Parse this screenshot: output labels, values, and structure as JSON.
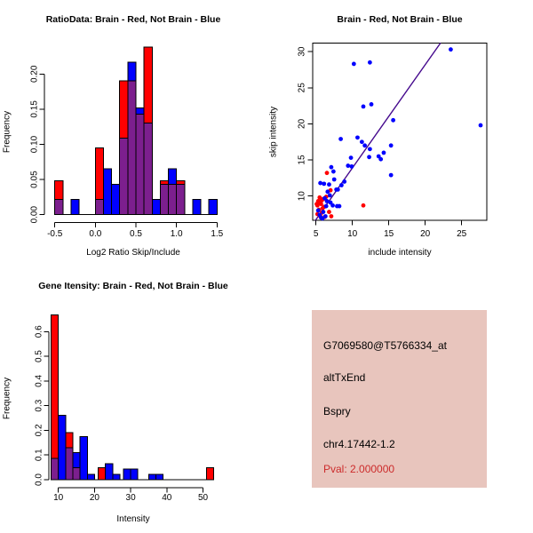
{
  "colors": {
    "red": "#FF0000",
    "blue": "#0000FF",
    "overlap_purple": "#7C1F8E",
    "fit_line": "#45098D",
    "axis": "#000000",
    "info_bg": "#E8C5BD",
    "pval_red": "#CC2B2B"
  },
  "chart_data": [
    {
      "id": "ratio_histogram",
      "type": "bar",
      "subtype": "overlaid-histogram",
      "title": "RatioData: Brain - Red, Not Brain - Blue",
      "xlabel": "Log2 Ratio Skip/Include",
      "ylabel": "Frequency",
      "xlim": [
        -0.5,
        1.5
      ],
      "ylim": [
        0,
        0.2
      ],
      "grid": false,
      "x_tick_values": [
        -0.5,
        0.0,
        0.5,
        1.0,
        1.5
      ],
      "x_tick_labels": [
        "-0.5",
        "0.0",
        "0.5",
        "1.0",
        "1.5"
      ],
      "y_tick_values": [
        0.0,
        0.05,
        0.1,
        0.15,
        0.2
      ],
      "y_tick_labels": [
        "0.00",
        "0.05",
        "0.10",
        "0.15",
        "0.20"
      ],
      "bin_width": 0.1,
      "baseline_extent": [
        -0.5,
        1.5
      ],
      "series": [
        {
          "name": "Brain",
          "color_key": "red",
          "bins": [
            [
              -0.5,
              0.048
            ],
            [
              0.0,
              0.095
            ],
            [
              0.3,
              0.19
            ],
            [
              0.4,
              0.19
            ],
            [
              0.5,
              0.143
            ],
            [
              0.6,
              0.238
            ],
            [
              0.8,
              0.048
            ],
            [
              0.9,
              0.043
            ],
            [
              1.0,
              0.048
            ]
          ]
        },
        {
          "name": "Not Brain",
          "color_key": "blue",
          "bins": [
            [
              -0.5,
              0.022
            ],
            [
              -0.3,
              0.022
            ],
            [
              0.0,
              0.022
            ],
            [
              0.1,
              0.065
            ],
            [
              0.2,
              0.043
            ],
            [
              0.3,
              0.109
            ],
            [
              0.4,
              0.217
            ],
            [
              0.5,
              0.152
            ],
            [
              0.6,
              0.13
            ],
            [
              0.7,
              0.022
            ],
            [
              0.8,
              0.043
            ],
            [
              0.9,
              0.065
            ],
            [
              1.0,
              0.043
            ],
            [
              1.2,
              0.022
            ],
            [
              1.4,
              0.022
            ]
          ]
        }
      ]
    },
    {
      "id": "intensity_scatter",
      "type": "scatter",
      "title": "Brain - Red, Not Brain - Blue",
      "xlabel": "include intensity",
      "ylabel": "skip intensity",
      "xlim": [
        4.6,
        28.5
      ],
      "ylim": [
        6.6,
        31.2
      ],
      "grid": false,
      "x_tick_values": [
        5,
        10,
        15,
        20,
        25
      ],
      "x_tick_labels": [
        "5",
        "10",
        "15",
        "20",
        "25"
      ],
      "y_tick_values": [
        10,
        15,
        20,
        25,
        30
      ],
      "y_tick_labels": [
        "10",
        "15",
        "20",
        "25",
        "30"
      ],
      "fit_line": {
        "x1": 4.9,
        "y1": 6.6,
        "x2": 22.1,
        "y2": 31.2
      },
      "series": [
        {
          "name": "Brain",
          "color_key": "red",
          "points": [
            [
              6.5,
              13.2
            ],
            [
              11.5,
              8.7
            ],
            [
              7.0,
              10.8
            ],
            [
              5.5,
              9.8
            ],
            [
              5.8,
              9.4
            ],
            [
              5.3,
              9.3
            ],
            [
              5.6,
              9.0
            ],
            [
              5.2,
              8.7
            ],
            [
              5.9,
              8.3
            ],
            [
              6.1,
              8.5
            ],
            [
              5.2,
              7.5
            ],
            [
              6.2,
              7.1
            ],
            [
              6.8,
              7.8
            ],
            [
              5.7,
              8.9
            ],
            [
              6.0,
              9.6
            ],
            [
              5.4,
              8.1
            ],
            [
              7.1,
              7.2
            ],
            [
              5.8,
              7.7
            ],
            [
              6.4,
              9.9
            ],
            [
              5.6,
              7.2
            ],
            [
              5.1,
              8.9
            ]
          ]
        },
        {
          "name": "Not Brain",
          "color_key": "blue",
          "points": [
            [
              23.5,
              30.3
            ],
            [
              10.2,
              28.3
            ],
            [
              12.4,
              28.5
            ],
            [
              11.5,
              22.4
            ],
            [
              12.6,
              22.7
            ],
            [
              15.6,
              20.5
            ],
            [
              27.6,
              19.8
            ],
            [
              8.4,
              17.9
            ],
            [
              10.7,
              18.1
            ],
            [
              11.3,
              17.5
            ],
            [
              11.7,
              17.0
            ],
            [
              12.4,
              16.5
            ],
            [
              15.3,
              17.0
            ],
            [
              14.3,
              16.0
            ],
            [
              13.6,
              15.5
            ],
            [
              13.9,
              15.1
            ],
            [
              12.3,
              15.4
            ],
            [
              9.8,
              15.3
            ],
            [
              15.3,
              12.9
            ],
            [
              9.4,
              14.2
            ],
            [
              9.9,
              14.1
            ],
            [
              7.1,
              14.0
            ],
            [
              7.4,
              13.4
            ],
            [
              8.9,
              12.0
            ],
            [
              8.5,
              11.5
            ],
            [
              6.1,
              11.7
            ],
            [
              5.6,
              11.8
            ],
            [
              8.0,
              10.9
            ],
            [
              7.8,
              10.9
            ],
            [
              6.6,
              10.6
            ],
            [
              6.9,
              10.1
            ],
            [
              6.2,
              9.7
            ],
            [
              6.5,
              9.3
            ],
            [
              7.0,
              9.1
            ],
            [
              6.4,
              8.6
            ],
            [
              7.3,
              8.7
            ],
            [
              7.9,
              8.6
            ],
            [
              8.2,
              8.6
            ],
            [
              6.0,
              7.8
            ],
            [
              5.5,
              7.4
            ],
            [
              5.3,
              8.0
            ],
            [
              7.5,
              12.3
            ],
            [
              6.8,
              11.6
            ],
            [
              5.9,
              6.9
            ],
            [
              6.3,
              7.2
            ],
            [
              5.7,
              7.0
            ]
          ]
        }
      ]
    },
    {
      "id": "gene_intensity_histogram",
      "type": "bar",
      "subtype": "overlaid-histogram",
      "title": "Gene Itensity: Brain - Red, Not Brain - Blue",
      "xlabel": "Intensity",
      "ylabel": "Frequency",
      "xlim": [
        8,
        53
      ],
      "ylim": [
        0,
        0.6
      ],
      "grid": false,
      "x_tick_values": [
        10,
        20,
        30,
        40,
        50
      ],
      "x_tick_labels": [
        "10",
        "20",
        "30",
        "40",
        "50"
      ],
      "y_tick_values": [
        0.0,
        0.1,
        0.2,
        0.3,
        0.4,
        0.5,
        0.6
      ],
      "y_tick_labels": [
        "0.0",
        "0.1",
        "0.2",
        "0.3",
        "0.4",
        "0.5",
        "0.6"
      ],
      "bin_width": 2,
      "baseline_extent": [
        8,
        53
      ],
      "series": [
        {
          "name": "Brain",
          "color_key": "red",
          "bins": [
            [
              8,
              0.667
            ],
            [
              12,
              0.19
            ],
            [
              14,
              0.048
            ],
            [
              21,
              0.048
            ],
            [
              51,
              0.048
            ]
          ]
        },
        {
          "name": "Not Brain",
          "color_key": "blue",
          "bins": [
            [
              8,
              0.087
            ],
            [
              10,
              0.261
            ],
            [
              12,
              0.13
            ],
            [
              14,
              0.109
            ],
            [
              16,
              0.174
            ],
            [
              18,
              0.022
            ],
            [
              23,
              0.065
            ],
            [
              25,
              0.022
            ],
            [
              28,
              0.043
            ],
            [
              30,
              0.043
            ],
            [
              35,
              0.022
            ],
            [
              37,
              0.022
            ]
          ]
        }
      ]
    }
  ],
  "info_panel": {
    "lines": [
      "G7069580@T5766334_at",
      "altTxEnd",
      "Bspry",
      "chr4.17442-1.2"
    ],
    "pval": "Pval: 2.000000"
  }
}
